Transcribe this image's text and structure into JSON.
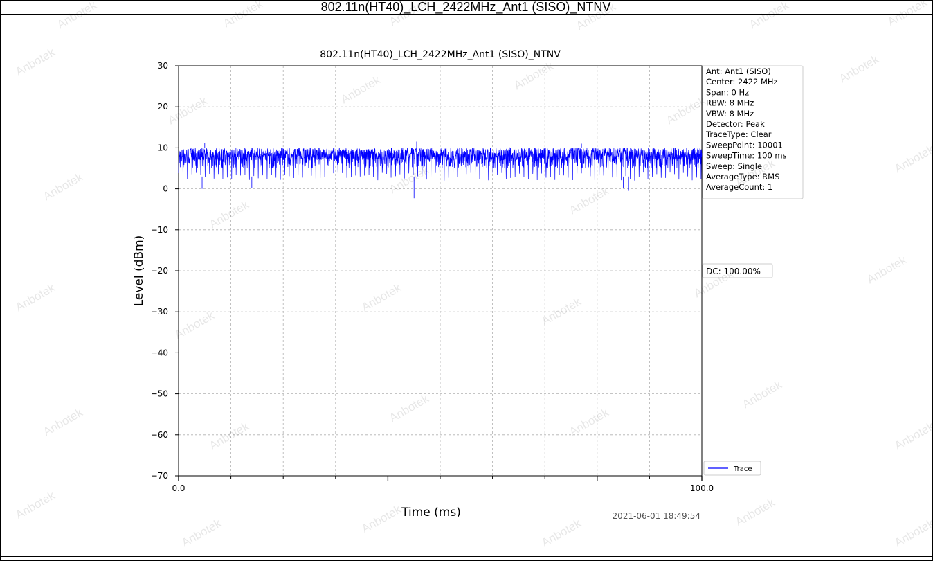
{
  "header": {
    "title": "802.11n(HT40)_LCH_2422MHz_Ant1 (SISO)_NTNV"
  },
  "watermark": {
    "text": "Anbotek"
  },
  "chart_data": {
    "type": "line",
    "title": "802.11n(HT40)_LCH_2422MHz_Ant1 (SISO)_NTNV",
    "xlabel": "Time (ms)",
    "ylabel": "Level (dBm)",
    "xlim": [
      0.0,
      100.0
    ],
    "ylim": [
      -70,
      30
    ],
    "x_ticks": [
      "0.0",
      "100.0"
    ],
    "y_ticks": [
      "30",
      "20",
      "10",
      "0",
      "−10",
      "−20",
      "−30",
      "−40",
      "−50",
      "−60",
      "−70"
    ],
    "grid": true,
    "series": [
      {
        "name": "Trace",
        "color": "#0000ff",
        "approx_level_dBm": {
          "typical_max": 10,
          "typical_min": 3,
          "peak": 11.5,
          "lowest_dip": -2.3
        }
      }
    ],
    "legend": {
      "placement": "lower-right-outside",
      "entries": [
        "Trace"
      ]
    },
    "info_box": [
      "Ant: Ant1 (SISO)",
      "Center: 2422 MHz",
      "Span: 0 Hz",
      "RBW: 8 MHz",
      "VBW: 8 MHz",
      "Detector: Peak",
      "TraceType: Clear",
      "SweepPoint: 10001",
      "SweepTime: 100 ms",
      "Sweep: Single",
      "AverageType: RMS",
      "AverageCount: 1"
    ],
    "dc_label": "DC: 100.00%",
    "timestamp": "2021-06-01 18:49:54"
  }
}
